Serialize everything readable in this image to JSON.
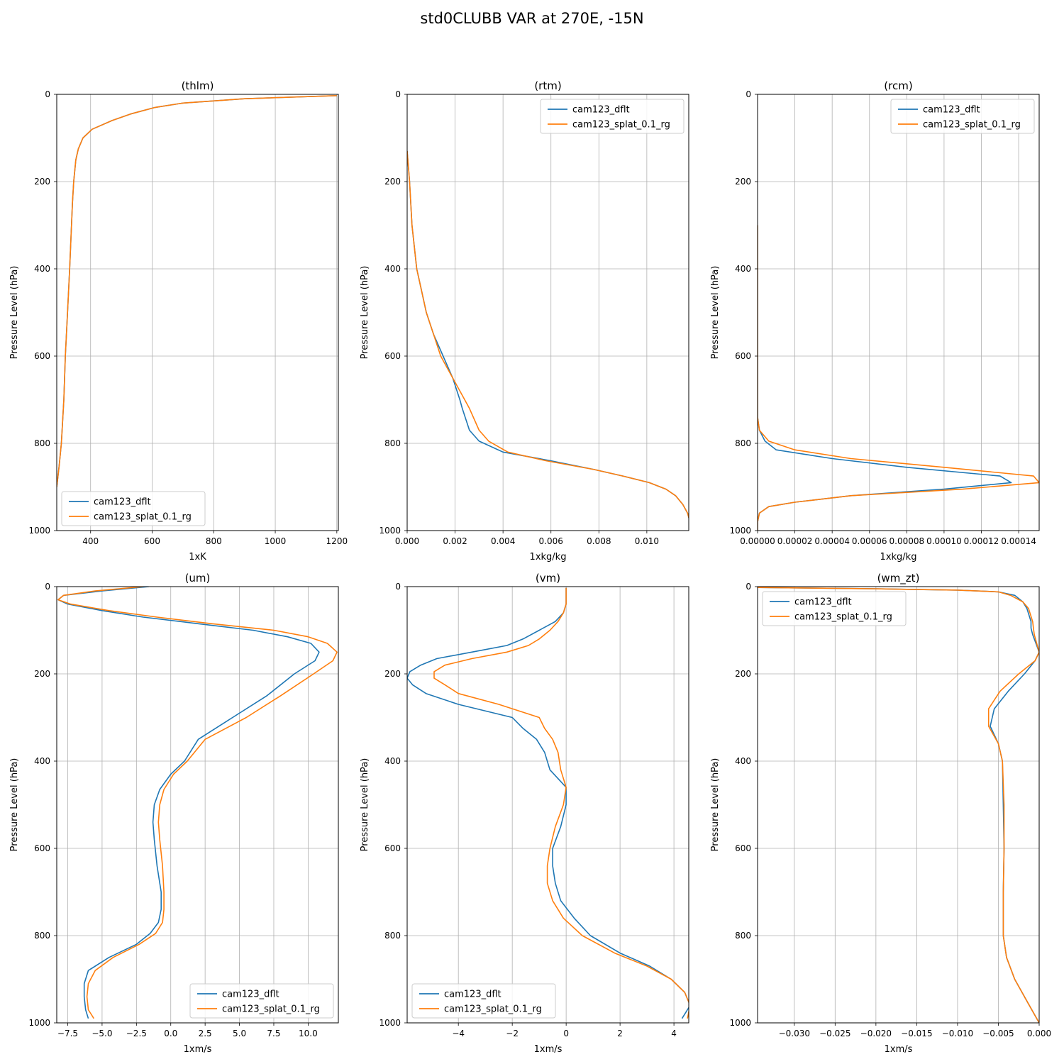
{
  "figure": {
    "title": "std0CLUBB VAR at 270E, -15N",
    "colors": {
      "cam123_dflt": "#1f77b4",
      "cam123_splat_0.1_rg": "#ff7f0e"
    }
  },
  "chart_data": [
    {
      "type": "line",
      "title": "(thlm)",
      "xlabel": "1xK",
      "ylabel": "Pressure Level (hPa)",
      "xlim": [
        290,
        1205
      ],
      "ylim": [
        1000,
        0
      ],
      "xticks": [
        400,
        600,
        800,
        1000,
        1200
      ],
      "xtick_labels": [
        "400",
        "600",
        "800",
        "1000",
        "1200"
      ],
      "yticks": [
        0,
        200,
        400,
        600,
        800,
        1000
      ],
      "ytick_labels": [
        "0",
        "200",
        "400",
        "600",
        "800",
        "1000"
      ],
      "grid": true,
      "legend": "lower left",
      "y": [
        3,
        10,
        20,
        30,
        45,
        60,
        80,
        100,
        125,
        150,
        200,
        250,
        300,
        400,
        500,
        600,
        700,
        800,
        850,
        900
      ],
      "series": [
        {
          "name": "cam123_dflt",
          "x": [
            1200,
            900,
            700,
            610,
            530,
            470,
            405,
            375,
            360,
            352,
            345,
            341,
            338,
            332,
            325,
            318,
            313,
            305,
            298,
            290
          ]
        },
        {
          "name": "cam123_splat_0.1_rg",
          "x": [
            1200,
            900,
            700,
            610,
            530,
            470,
            405,
            375,
            360,
            352,
            345,
            341,
            338,
            332,
            325,
            318,
            313,
            305,
            298,
            290
          ]
        }
      ]
    },
    {
      "type": "line",
      "title": "(rtm)",
      "xlabel": "1xkg/kg",
      "ylabel": "Pressure Level (hPa)",
      "xlim": [
        0,
        0.01175
      ],
      "ylim": [
        1000,
        0
      ],
      "xticks": [
        0,
        0.002,
        0.004,
        0.006,
        0.008,
        0.01
      ],
      "xtick_labels": [
        "0.000",
        "0.002",
        "0.004",
        "0.006",
        "0.008",
        "0.010"
      ],
      "yticks": [
        0,
        200,
        400,
        600,
        800,
        1000
      ],
      "ytick_labels": [
        "0",
        "200",
        "400",
        "600",
        "800",
        "1000"
      ],
      "grid": true,
      "legend": "upper right",
      "y": [
        130,
        200,
        300,
        400,
        450,
        500,
        550,
        600,
        650,
        700,
        720,
        770,
        795,
        820,
        840,
        860,
        875,
        890,
        905,
        920,
        940,
        960,
        980,
        995
      ],
      "series": [
        {
          "name": "cam123_dflt",
          "x": [
            0.0,
            0.0001,
            0.0002,
            0.0004,
            0.0006,
            0.0008,
            0.0011,
            0.0015,
            0.0019,
            0.0022,
            0.0023,
            0.0026,
            0.003,
            0.004,
            0.006,
            0.0078,
            0.009,
            0.0101,
            0.0108,
            0.0112,
            0.0115,
            0.0117,
            0.0118,
            0.0118
          ]
        },
        {
          "name": "cam123_splat_0.1_rg",
          "x": [
            0.0,
            0.0001,
            0.0002,
            0.0004,
            0.0006,
            0.0008,
            0.0011,
            0.0014,
            0.0019,
            0.0024,
            0.0026,
            0.003,
            0.0034,
            0.0042,
            0.0058,
            0.0078,
            0.009,
            0.0101,
            0.0108,
            0.0112,
            0.0115,
            0.0117,
            0.0118,
            0.0118
          ]
        }
      ]
    },
    {
      "type": "line",
      "title": "(rcm)",
      "xlabel": "1xkg/kg",
      "ylabel": "Pressure Level (hPa)",
      "xlim": [
        0,
        0.000151
      ],
      "ylim": [
        1000,
        0
      ],
      "xticks": [
        0,
        2e-05,
        4e-05,
        6e-05,
        8e-05,
        0.0001,
        0.00012,
        0.00014
      ],
      "xtick_labels": [
        "0.00000",
        "0.00002",
        "0.00004",
        "0.00006",
        "0.00008",
        "0.00010",
        "0.00012",
        "0.00014"
      ],
      "yticks": [
        0,
        200,
        400,
        600,
        800,
        1000
      ],
      "ytick_labels": [
        "0",
        "200",
        "400",
        "600",
        "800",
        "1000"
      ],
      "grid": true,
      "legend": "upper right",
      "series": [
        {
          "name": "cam123_dflt",
          "y": [
            300,
            740,
            770,
            795,
            815,
            835,
            855,
            875,
            890,
            905,
            920,
            935,
            945,
            960,
            980,
            1000
          ],
          "x": [
            0,
            0,
            1e-06,
            4e-06,
            1e-05,
            4e-05,
            8e-05,
            0.00013,
            0.000136,
            0.0001,
            5e-05,
            2e-05,
            6e-06,
            1e-06,
            0,
            0
          ]
        },
        {
          "name": "cam123_splat_0.1_rg",
          "y": [
            300,
            740,
            770,
            795,
            815,
            835,
            855,
            875,
            890,
            905,
            920,
            935,
            945,
            960,
            980,
            1000
          ],
          "x": [
            0,
            0,
            1e-06,
            6e-06,
            2e-05,
            5e-05,
            0.0001,
            0.000148,
            0.000151,
            0.00011,
            5e-05,
            2e-05,
            6e-06,
            1e-06,
            0,
            0
          ]
        }
      ]
    },
    {
      "type": "line",
      "title": "(um)",
      "xlabel": "1xm/s",
      "ylabel": "Pressure Level (hPa)",
      "xlim": [
        -8.3,
        12.2
      ],
      "ylim": [
        1000,
        0
      ],
      "xticks": [
        -7.5,
        -5,
        -2.5,
        0,
        2.5,
        5,
        7.5,
        10
      ],
      "xtick_labels": [
        "−7.5",
        "−5.0",
        "−2.5",
        "0.0",
        "2.5",
        "5.0",
        "7.5",
        "10.0"
      ],
      "yticks": [
        0,
        200,
        400,
        600,
        800,
        1000
      ],
      "ytick_labels": [
        "0",
        "200",
        "400",
        "600",
        "800",
        "1000"
      ],
      "grid": true,
      "legend": "lower right",
      "series": [
        {
          "name": "cam123_dflt",
          "y": [
            0,
            10,
            20,
            30,
            40,
            55,
            70,
            85,
            100,
            115,
            130,
            150,
            170,
            200,
            250,
            300,
            350,
            400,
            430,
            465,
            500,
            540,
            580,
            640,
            700,
            740,
            770,
            795,
            820,
            850,
            880,
            910,
            940,
            970,
            990
          ],
          "x": [
            -1.6,
            -5.0,
            -7.8,
            -8.2,
            -7.5,
            -5.0,
            -2.0,
            2.0,
            6.0,
            8.5,
            10.2,
            10.8,
            10.5,
            9.0,
            7.0,
            4.5,
            2.0,
            1.0,
            0.0,
            -0.8,
            -1.2,
            -1.3,
            -1.2,
            -1.0,
            -0.7,
            -0.7,
            -0.9,
            -1.5,
            -2.5,
            -4.5,
            -6.0,
            -6.3,
            -6.3,
            -6.2,
            -6.0
          ]
        },
        {
          "name": "cam123_splat_0.1_rg",
          "y": [
            0,
            10,
            20,
            30,
            40,
            55,
            70,
            85,
            100,
            115,
            130,
            150,
            170,
            200,
            250,
            300,
            350,
            400,
            430,
            465,
            500,
            540,
            580,
            640,
            700,
            740,
            770,
            795,
            820,
            850,
            880,
            910,
            940,
            970,
            990
          ],
          "x": [
            -2.0,
            -5.5,
            -7.8,
            -8.2,
            -7.3,
            -4.5,
            -1.0,
            3.0,
            7.5,
            10.0,
            11.4,
            12.1,
            11.8,
            10.4,
            8.0,
            5.5,
            2.5,
            1.2,
            0.2,
            -0.5,
            -0.8,
            -0.9,
            -0.8,
            -0.6,
            -0.5,
            -0.5,
            -0.6,
            -1.1,
            -2.3,
            -4.2,
            -5.5,
            -6.0,
            -6.1,
            -6.0,
            -5.6
          ]
        }
      ]
    },
    {
      "type": "line",
      "title": "(vm)",
      "xlabel": "1xm/s",
      "ylabel": "Pressure Level (hPa)",
      "xlim": [
        -5.9,
        4.55
      ],
      "ylim": [
        1000,
        0
      ],
      "xticks": [
        -4,
        -2,
        0,
        2,
        4
      ],
      "xtick_labels": [
        "−4",
        "−2",
        "0",
        "2",
        "4"
      ],
      "yticks": [
        0,
        200,
        400,
        600,
        800,
        1000
      ],
      "ytick_labels": [
        "0",
        "200",
        "400",
        "600",
        "800",
        "1000"
      ],
      "grid": true,
      "legend": "lower left",
      "series": [
        {
          "name": "cam123_dflt",
          "y": [
            3,
            20,
            40,
            60,
            80,
            100,
            120,
            135,
            150,
            165,
            180,
            195,
            210,
            225,
            245,
            270,
            300,
            325,
            350,
            380,
            420,
            460,
            500,
            550,
            600,
            640,
            680,
            720,
            760,
            800,
            840,
            870,
            900,
            930,
            960,
            990
          ],
          "x": [
            0.0,
            0.0,
            0.0,
            -0.1,
            -0.4,
            -1.0,
            -1.6,
            -2.2,
            -3.5,
            -4.8,
            -5.4,
            -5.8,
            -5.9,
            -5.7,
            -5.2,
            -4.0,
            -2.0,
            -1.6,
            -1.1,
            -0.8,
            -0.6,
            0.0,
            0.0,
            -0.2,
            -0.5,
            -0.5,
            -0.4,
            -0.2,
            0.3,
            0.9,
            2.0,
            3.1,
            3.9,
            4.4,
            4.6,
            4.3
          ]
        },
        {
          "name": "cam123_splat_0.1_rg",
          "y": [
            3,
            20,
            40,
            60,
            80,
            100,
            120,
            135,
            150,
            165,
            180,
            195,
            210,
            225,
            245,
            270,
            300,
            325,
            350,
            380,
            420,
            460,
            500,
            550,
            600,
            640,
            680,
            720,
            760,
            800,
            840,
            870,
            900,
            930,
            960,
            990
          ],
          "x": [
            0.0,
            0.0,
            0.0,
            -0.1,
            -0.3,
            -0.6,
            -1.0,
            -1.4,
            -2.2,
            -3.5,
            -4.5,
            -4.9,
            -4.9,
            -4.5,
            -4.0,
            -2.5,
            -1.0,
            -0.8,
            -0.5,
            -0.3,
            -0.2,
            0.0,
            -0.1,
            -0.4,
            -0.6,
            -0.7,
            -0.7,
            -0.5,
            -0.1,
            0.6,
            1.8,
            3.0,
            3.9,
            4.4,
            4.6,
            4.5
          ]
        }
      ]
    },
    {
      "type": "line",
      "title": "(wm_zt)",
      "xlabel": "1xm/s",
      "ylabel": "Pressure Level (hPa)",
      "xlim": [
        -0.0345,
        0
      ],
      "ylim": [
        1000,
        0
      ],
      "xticks": [
        -0.03,
        -0.025,
        -0.02,
        -0.015,
        -0.01,
        -0.005,
        0
      ],
      "xtick_labels": [
        "−0.030",
        "−0.025",
        "−0.020",
        "−0.015",
        "−0.010",
        "−0.005",
        "0.000"
      ],
      "yticks": [
        0,
        200,
        400,
        600,
        800,
        1000
      ],
      "ytick_labels": [
        "0",
        "200",
        "400",
        "600",
        "800",
        "1000"
      ],
      "grid": true,
      "legend": "upper left",
      "series": [
        {
          "name": "cam123_dflt",
          "y": [
            2,
            5,
            8,
            12,
            20,
            35,
            50,
            80,
            95,
            110,
            130,
            150,
            170,
            200,
            240,
            280,
            320,
            360,
            400,
            500,
            600,
            700,
            800,
            850,
            900,
            950,
            1000
          ],
          "x": [
            -0.0345,
            -0.02,
            -0.01,
            -0.005,
            -0.003,
            -0.002,
            -0.0015,
            -0.001,
            -0.001,
            -0.0008,
            -0.0004,
            0.0,
            -0.0005,
            -0.0018,
            -0.0038,
            -0.0055,
            -0.006,
            -0.005,
            -0.0045,
            -0.0044,
            -0.0043,
            -0.0044,
            -0.0044,
            -0.004,
            -0.003,
            -0.0015,
            0.0
          ]
        },
        {
          "name": "cam123_splat_0.1_rg",
          "y": [
            2,
            5,
            8,
            12,
            20,
            35,
            50,
            80,
            95,
            110,
            130,
            150,
            170,
            200,
            240,
            280,
            320,
            360,
            400,
            500,
            600,
            700,
            800,
            850,
            900,
            950,
            1000
          ],
          "x": [
            -0.0345,
            -0.02,
            -0.01,
            -0.005,
            -0.0035,
            -0.002,
            -0.0013,
            -0.0008,
            -0.0007,
            -0.0006,
            -0.0003,
            0.0,
            -0.0005,
            -0.0025,
            -0.0048,
            -0.0062,
            -0.0062,
            -0.005,
            -0.0045,
            -0.0043,
            -0.0043,
            -0.0044,
            -0.0044,
            -0.004,
            -0.003,
            -0.0015,
            0.0
          ]
        }
      ]
    }
  ]
}
